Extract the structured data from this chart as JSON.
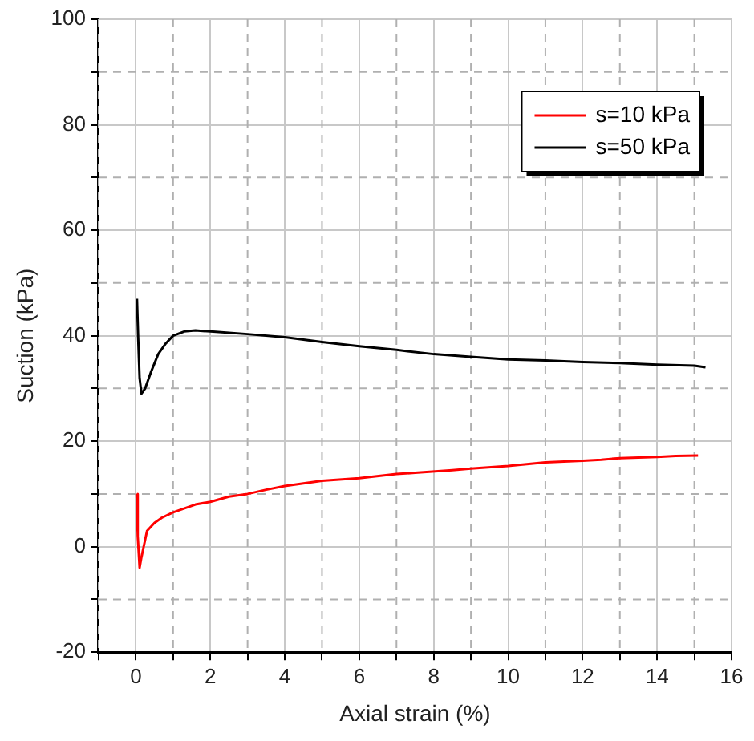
{
  "chart_data": {
    "type": "line",
    "xlabel": "Axial strain (%)",
    "ylabel": "Suction (kPa)",
    "xlim": [
      -1,
      16
    ],
    "xticks": [
      {
        "value": -1,
        "label": null
      },
      0,
      {
        "value": 1,
        "label": null
      },
      2,
      {
        "value": 3,
        "label": null
      },
      4,
      {
        "value": 5,
        "label": null
      },
      6,
      {
        "value": 7,
        "label": null
      },
      8,
      {
        "value": 9,
        "label": null
      },
      10,
      {
        "value": 11,
        "label": null
      },
      12,
      {
        "value": 13,
        "label": null
      },
      14,
      {
        "value": 15,
        "label": null
      },
      16
    ],
    "ylim": [
      -20,
      100
    ],
    "yticks": [
      -20,
      {
        "value": -10,
        "label": null
      },
      0,
      {
        "value": 10,
        "label": null
      },
      20,
      {
        "value": 30,
        "label": null
      },
      40,
      {
        "value": 50,
        "label": null
      },
      60,
      {
        "value": 70,
        "label": null
      },
      80,
      {
        "value": 90,
        "label": null
      },
      100
    ],
    "grid": true,
    "legend": "top right",
    "marker": "none",
    "line_style": "solid",
    "series": [
      {
        "name": "s=10 kPa",
        "color": "#ff0000",
        "x": [
          0.02,
          0.05,
          0.1,
          0.15,
          0.3,
          0.5,
          0.7,
          1,
          1.2,
          1.6,
          2,
          2.5,
          3,
          3.5,
          4,
          5,
          6,
          7,
          7.5,
          8.5,
          9,
          10,
          11,
          12,
          12.5,
          13,
          14,
          14.5,
          15.1
        ],
        "values": [
          10,
          2,
          -4,
          -2,
          3,
          4.5,
          5.5,
          6.5,
          7,
          8,
          8.5,
          9.5,
          10,
          10.8,
          11.5,
          12.5,
          13,
          13.8,
          14,
          14.5,
          14.8,
          15.3,
          16,
          16.3,
          16.5,
          16.8,
          17,
          17.2,
          17.3
        ]
      },
      {
        "name": "s=50 kPa",
        "color": "#000000",
        "x": [
          0.03,
          0.06,
          0.1,
          0.15,
          0.25,
          0.4,
          0.6,
          0.8,
          1,
          1.3,
          1.6,
          2,
          3,
          4,
          5,
          6,
          7,
          8,
          9,
          10,
          11,
          12,
          13,
          14,
          15,
          15.3
        ],
        "values": [
          47,
          40,
          32,
          29,
          30,
          33,
          36.5,
          38.5,
          40,
          40.8,
          41,
          40.8,
          40.3,
          39.7,
          38.8,
          38,
          37.3,
          36.5,
          36,
          35.5,
          35.3,
          35,
          34.8,
          34.5,
          34.3,
          34
        ]
      }
    ]
  }
}
